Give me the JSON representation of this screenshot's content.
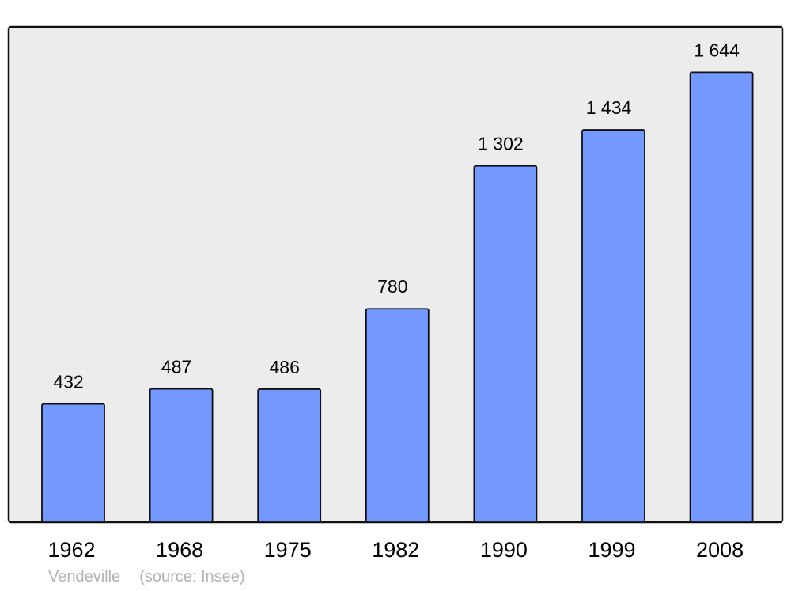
{
  "chart_data": {
    "type": "bar",
    "categories": [
      "1962",
      "1968",
      "1975",
      "1982",
      "1990",
      "1999",
      "2008"
    ],
    "values": [
      432,
      487,
      486,
      780,
      1302,
      1434,
      1644
    ],
    "value_labels": [
      "432",
      "487",
      "486",
      "780",
      "1 302",
      "1 434",
      "1 644"
    ],
    "title": "",
    "xlabel": "",
    "ylabel": "",
    "ylim": [
      0,
      1810
    ],
    "grid": false,
    "bar_color": "#7399ff",
    "background_color": "#ececec"
  },
  "caption": {
    "place": "Vendeville",
    "source": "(source: Insee)"
  }
}
